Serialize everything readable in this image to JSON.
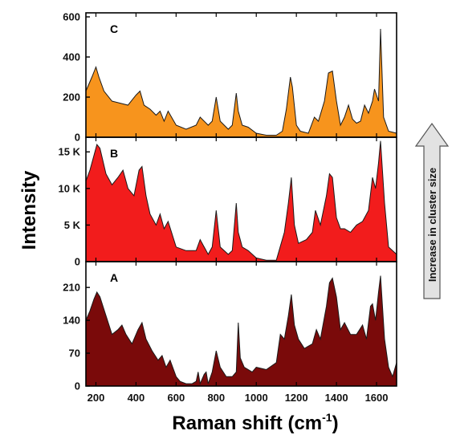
{
  "colors": {
    "panel_c": "#F7941D",
    "panel_b": "#F21C1C",
    "panel_a": "#7A0A0A",
    "arrow_fill": "#E2E2E2",
    "arrow_stroke": "#555555"
  },
  "ylabel": "Intensity",
  "xlabel_main": "Raman shift (cm",
  "xlabel_sup": "-1",
  "xlabel_close": ")",
  "arrow_label": "Increase in cluster size",
  "chart_data": [
    {
      "type": "area",
      "panel": "C",
      "color": "#F7941D",
      "xlim": [
        150,
        1700
      ],
      "ylim": [
        0,
        620
      ],
      "yticks": [
        0,
        200,
        400,
        600
      ],
      "ytick_labels": [
        "0",
        "200",
        "400",
        "600"
      ],
      "x": [
        150,
        180,
        200,
        215,
        240,
        280,
        320,
        360,
        400,
        420,
        440,
        470,
        500,
        520,
        540,
        560,
        600,
        650,
        700,
        720,
        760,
        780,
        800,
        820,
        860,
        880,
        900,
        910,
        930,
        960,
        1000,
        1050,
        1100,
        1130,
        1150,
        1170,
        1180,
        1200,
        1220,
        1260,
        1290,
        1310,
        1340,
        1360,
        1380,
        1400,
        1420,
        1440,
        1460,
        1480,
        1500,
        1520,
        1540,
        1560,
        1580,
        1590,
        1610,
        1620,
        1635,
        1660,
        1700
      ],
      "y": [
        230,
        300,
        350,
        300,
        230,
        180,
        170,
        160,
        210,
        230,
        160,
        140,
        110,
        130,
        80,
        130,
        60,
        40,
        60,
        100,
        60,
        80,
        200,
        80,
        40,
        60,
        220,
        130,
        60,
        50,
        20,
        10,
        10,
        30,
        140,
        300,
        250,
        60,
        30,
        20,
        100,
        80,
        180,
        320,
        330,
        180,
        60,
        100,
        160,
        90,
        70,
        80,
        160,
        120,
        180,
        240,
        180,
        540,
        100,
        30,
        20
      ]
    },
    {
      "type": "area",
      "panel": "B",
      "color": "#F21C1C",
      "xlim": [
        150,
        1700
      ],
      "ylim": [
        0,
        17000
      ],
      "yticks": [
        0,
        5000,
        10000,
        15000
      ],
      "ytick_labels": [
        "0",
        "5 K",
        "10 K",
        "15 K"
      ],
      "x": [
        150,
        170,
        190,
        205,
        220,
        250,
        280,
        310,
        335,
        360,
        390,
        415,
        430,
        450,
        470,
        500,
        520,
        540,
        560,
        600,
        650,
        700,
        720,
        760,
        780,
        800,
        820,
        860,
        880,
        900,
        910,
        930,
        960,
        1000,
        1050,
        1100,
        1140,
        1160,
        1175,
        1190,
        1210,
        1250,
        1280,
        1295,
        1320,
        1350,
        1365,
        1380,
        1400,
        1420,
        1440,
        1470,
        1500,
        1530,
        1560,
        1580,
        1595,
        1610,
        1620,
        1640,
        1660,
        1700
      ],
      "y": [
        11000,
        12500,
        14500,
        16000,
        15500,
        12000,
        10500,
        11500,
        12500,
        10000,
        9000,
        12500,
        13000,
        9000,
        6500,
        5000,
        6500,
        4500,
        5500,
        2000,
        1500,
        1500,
        3000,
        1000,
        2000,
        7000,
        2000,
        1000,
        1500,
        8000,
        4000,
        2000,
        1500,
        500,
        200,
        200,
        4000,
        8000,
        11500,
        5000,
        2500,
        3000,
        4000,
        7000,
        5000,
        9000,
        12000,
        11500,
        6000,
        4500,
        4500,
        4000,
        5000,
        5500,
        7000,
        11500,
        10000,
        13500,
        16500,
        8000,
        2000,
        1000
      ]
    },
    {
      "type": "area",
      "panel": "A",
      "color": "#7A0A0A",
      "xlim": [
        150,
        1700
      ],
      "ylim": [
        0,
        265
      ],
      "yticks": [
        0,
        70,
        140,
        210
      ],
      "ytick_labels": [
        "0",
        "70",
        "140",
        "210"
      ],
      "x": [
        150,
        170,
        190,
        205,
        220,
        250,
        280,
        310,
        330,
        350,
        380,
        410,
        430,
        450,
        480,
        510,
        530,
        550,
        570,
        600,
        620,
        650,
        680,
        700,
        710,
        720,
        740,
        750,
        760,
        780,
        800,
        820,
        850,
        880,
        900,
        910,
        920,
        940,
        980,
        1000,
        1050,
        1100,
        1120,
        1140,
        1160,
        1175,
        1190,
        1210,
        1240,
        1280,
        1300,
        1320,
        1350,
        1365,
        1380,
        1400,
        1420,
        1440,
        1470,
        1500,
        1530,
        1550,
        1570,
        1580,
        1595,
        1610,
        1620,
        1640,
        1660,
        1680,
        1700
      ],
      "y": [
        140,
        160,
        185,
        200,
        190,
        150,
        110,
        120,
        130,
        110,
        90,
        120,
        135,
        100,
        75,
        55,
        65,
        40,
        55,
        20,
        10,
        5,
        5,
        10,
        30,
        5,
        25,
        30,
        5,
        30,
        75,
        40,
        20,
        20,
        30,
        135,
        60,
        40,
        30,
        40,
        35,
        50,
        110,
        100,
        150,
        195,
        130,
        100,
        80,
        90,
        120,
        100,
        170,
        220,
        230,
        190,
        120,
        135,
        110,
        110,
        130,
        100,
        170,
        175,
        140,
        200,
        235,
        100,
        40,
        20,
        50
      ]
    }
  ],
  "x_axis": {
    "xlim": [
      150,
      1700
    ],
    "xticks": [
      200,
      400,
      600,
      800,
      1000,
      1200,
      1400,
      1600
    ],
    "xtick_labels": [
      "200",
      "400",
      "600",
      "800",
      "1000",
      "1200",
      "1400",
      "1600"
    ]
  }
}
